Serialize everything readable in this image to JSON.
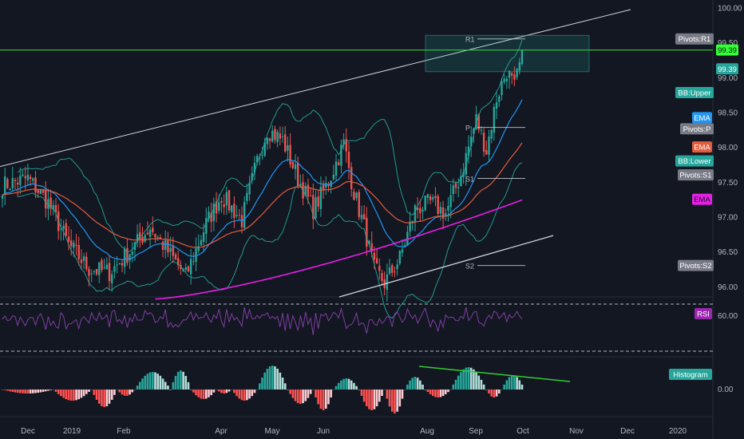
{
  "colors": {
    "background": "#131722",
    "up": "#26a69a",
    "down": "#ef5350",
    "green_line": "#33cc33",
    "ema_fast": "#2196f3",
    "ema_slow": "#e45b3b",
    "ema_long": "#e91ee9",
    "bb": "#26a69a",
    "rsi": "#7e3f9f",
    "trend": "#d1d4dc"
  },
  "chart_data": [
    {
      "type": "candlestick",
      "panel": "price",
      "y_range": [
        95.85,
        100.05
      ],
      "y_ticks": [
        "100.00",
        "99.50",
        "99.00",
        "98.50",
        "98.00",
        "97.50",
        "97.00",
        "96.50",
        "96.00"
      ],
      "x_labels": [
        "Dec",
        "2019",
        "Feb",
        "Apr",
        "May",
        "Jun",
        "Aug",
        "Sep",
        "Oct",
        "Nov",
        "Dec",
        "2020"
      ],
      "last_price": "99.39",
      "horizontal_line": 99.39,
      "series_labels": [
        "Pivots:R1",
        "99.39",
        "99.39",
        "BB:Upper",
        "EMA",
        "Pivots:P",
        "EMA",
        "BB:Lower",
        "Pivots:S1",
        "EMA",
        "Pivots:S2"
      ],
      "pivot_levels": [
        {
          "name": "R1",
          "value": 99.55
        },
        {
          "name": "P",
          "value": 98.28
        },
        {
          "name": "S1",
          "value": 97.55
        },
        {
          "name": "S2",
          "value": 96.3
        }
      ]
    },
    {
      "type": "line",
      "panel": "rsi",
      "y_tick": "60.00",
      "label": "RSI"
    },
    {
      "type": "histogram",
      "panel": "macd",
      "y_tick": "0.00",
      "label": "Histogram"
    }
  ]
}
